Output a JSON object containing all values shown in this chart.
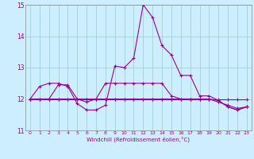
{
  "xlabel": "Windchill (Refroidissement éolien,°C)",
  "bg_color": "#cceeff",
  "line_color": "#990099",
  "grid_color": "#99cccc",
  "spine_color": "#888888",
  "xlim": [
    -0.5,
    23.5
  ],
  "ylim": [
    11,
    15
  ],
  "yticks": [
    11,
    12,
    13,
    14,
    15
  ],
  "xticks": [
    0,
    1,
    2,
    3,
    4,
    5,
    6,
    7,
    8,
    9,
    10,
    11,
    12,
    13,
    14,
    15,
    16,
    17,
    18,
    19,
    20,
    21,
    22,
    23
  ],
  "series": [
    [
      12.0,
      12.4,
      12.5,
      12.5,
      12.4,
      11.85,
      11.65,
      11.65,
      11.8,
      13.05,
      13.0,
      13.3,
      15.0,
      14.6,
      13.7,
      13.4,
      12.75,
      12.75,
      12.1,
      12.1,
      11.95,
      11.75,
      11.65,
      11.75
    ],
    [
      12.0,
      12.0,
      12.0,
      12.45,
      12.45,
      12.0,
      11.9,
      12.0,
      12.5,
      12.5,
      12.5,
      12.5,
      12.5,
      12.5,
      12.5,
      12.1,
      12.0,
      12.0,
      12.0,
      12.0,
      11.95,
      11.75,
      11.65,
      11.75
    ],
    [
      12.0,
      12.0,
      12.0,
      12.0,
      12.0,
      12.0,
      12.0,
      12.0,
      12.0,
      12.0,
      12.0,
      12.0,
      12.0,
      12.0,
      12.0,
      12.0,
      12.0,
      12.0,
      12.0,
      12.0,
      12.0,
      12.0,
      12.0,
      12.0
    ],
    [
      12.0,
      12.0,
      12.0,
      12.0,
      12.0,
      12.0,
      12.0,
      12.0,
      12.0,
      12.0,
      12.0,
      12.0,
      12.0,
      12.0,
      12.0,
      12.0,
      12.0,
      12.0,
      12.0,
      12.0,
      11.9,
      11.8,
      11.7,
      11.75
    ]
  ]
}
